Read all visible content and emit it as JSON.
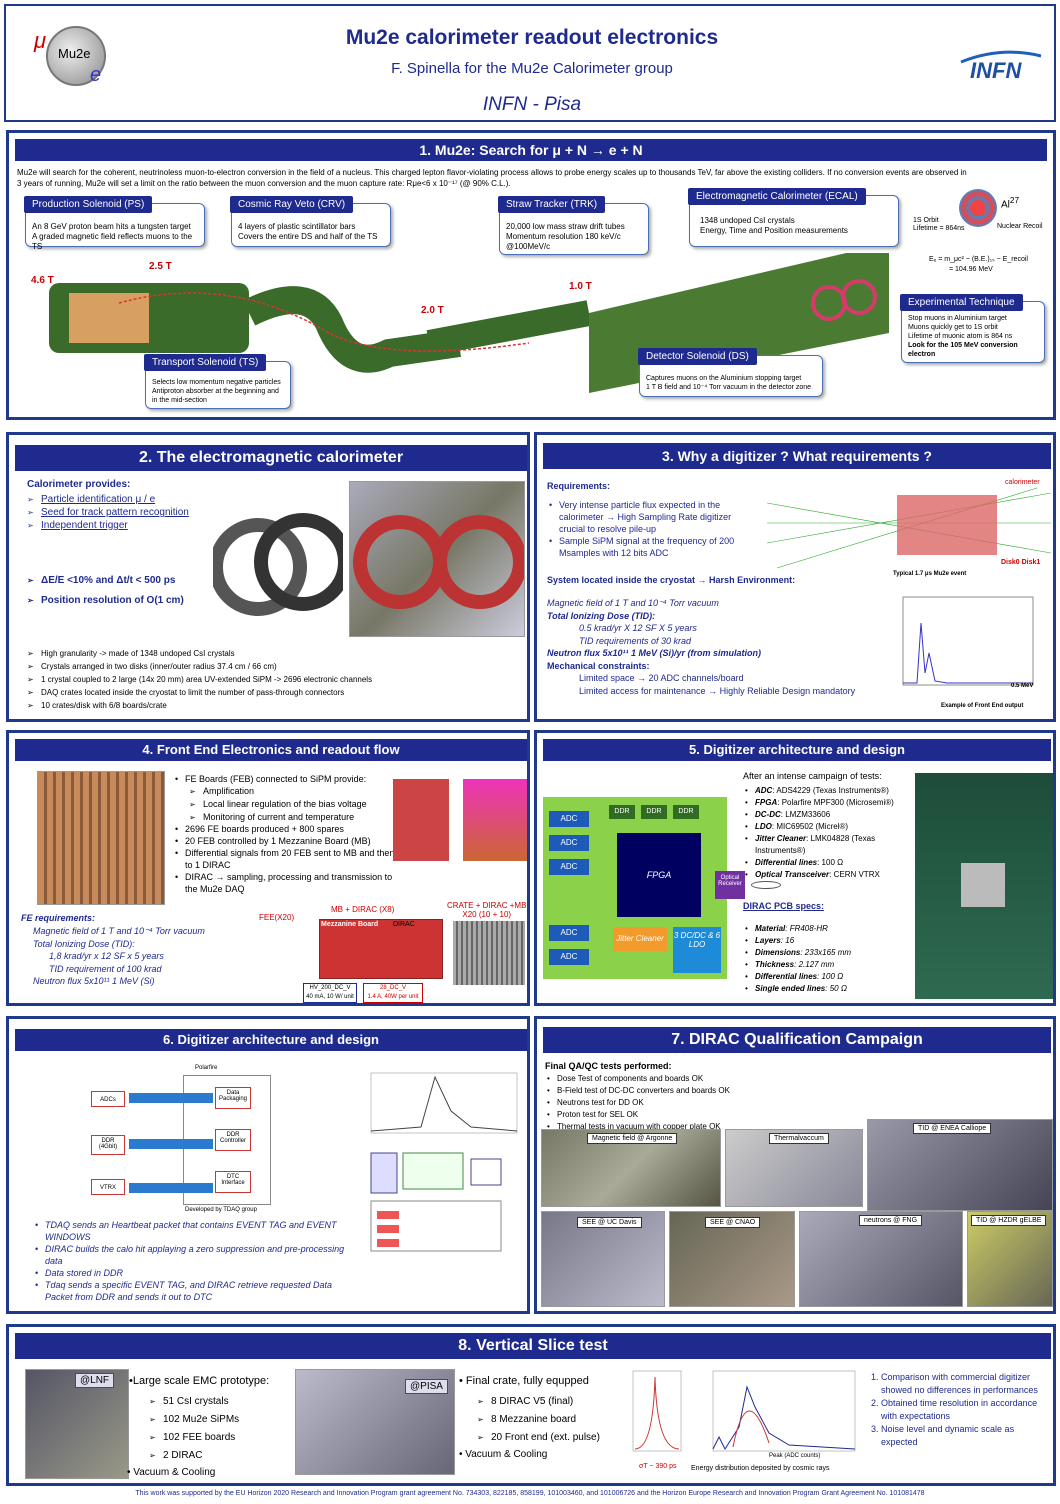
{
  "header": {
    "title": "Mu2e calorimeter readout electronics",
    "author": "F. Spinella for  the Mu2e Calorimeter group",
    "institute": "INFN - Pisa",
    "logo_text": "INFN",
    "mu2e_logo": "Mu2e"
  },
  "p1": {
    "title": "1. Mu2e:  Search for μ + N → e + N",
    "intro1": "Mu2e will search for the coherent, neutrinoless muon-to-electron conversion  in the field of a nucleus. This charged lepton flavor-violating process allows to probe energy scales up to thousands TeV, far above the existing colliders. If no conversion events are observed in",
    "intro2": "3 years of running, Mu2e will set a limit on the ratio between the muon conversion and the muon capture rate: Rμe<6 x 10⁻¹⁷ (@ 90% C.L.).",
    "ps_t": "Production Solenoid  (PS)",
    "ps_1": "An 8 GeV proton beam hits a tungsten target",
    "ps_2": "A graded magnetic field reflects muons to the TS",
    "crv_t": "Cosmic Ray Veto  (CRV)",
    "crv_1": "4 layers of plastic scintillator bars",
    "crv_2": "Covers the entire DS and half of the TS",
    "trk_t": "Straw Tracker (TRK)",
    "trk_1": "20,000 low mass straw drift tubes",
    "trk_2": "Momentum resolution 180 keV/c",
    "trk_3": "@100MeV/c",
    "ecal_t": "Electromagnetic Calorimeter (ECAL)",
    "ecal_1": "1348 undoped CsI crystals",
    "ecal_2": "Energy, Time and Position measurements",
    "al": "Al",
    "al_sup": "27",
    "orbit1": "1S Orbit",
    "orbit2": "Lifetime = 864ns",
    "recoil": "Nuclear Recoil",
    "formula1": "Eₑ = m_μc² − (B.E.)₁ₛ − E_recoil",
    "formula2": "= 104.96 MeV",
    "exp_t": "Experimental Technique",
    "exp_1": "Stop muons in Aluminium target",
    "exp_2": "Muons quickly get to 1S orbit",
    "exp_3": "Lifetime of muonic atom is 864 ns",
    "exp_4": "Look for the 105 MeV conversion",
    "exp_5": "electron",
    "ts_t": "Transport Solenoid (TS)",
    "ts_1": "Selects low momentum negative particles",
    "ts_2": "Antiproton absorber at the beginning and",
    "ts_3": "in the mid-section",
    "ds_t": "Detector Solenoid (DS)",
    "ds_1": "Captures muons on the Aluminium stopping target",
    "ds_2": "1 T B field and 10⁻⁴ Torr vacuum in the  detector zone",
    "f46": "4.6 T",
    "f25": "2.5 T",
    "f20": "2.0 T",
    "f10": "1.0 T"
  },
  "p2": {
    "title": "2. The electromagnetic calorimeter",
    "provides": "Calorimeter provides:",
    "items": [
      "Particle identification μ / e",
      "Seed for track pattern recognition",
      "Independent trigger"
    ],
    "res1": "ΔE/E <10% and Δt/t < 500 ps",
    "res2": "Position resolution of O(1 cm)",
    "bullets": [
      "High granularity -> made of 1348 undoped CsI crystals",
      "Crystals arranged in two disks (inner/outer radius 37.4 cm / 66 cm)",
      "1 crystal coupled to 2 large (14x 20 mm) area UV-extended SiPM -> 2696 electronic channels",
      "DAQ crates located inside the cryostat to limit the number of pass-through connectors",
      "10 crates/disk with 6/8 boards/crate"
    ]
  },
  "p3": {
    "title": "3. Why a digitizer ? What requirements ?",
    "req": "Requirements:",
    "r1": "Very intense particle flux expected in the calorimeter → High Sampling Rate digitizer crucial to resolve pile-up",
    "r2": "Sample SiPM signal at the frequency of 200 Msamples with 12 bits ADC",
    "sys": "System located inside the cryostat → Harsh Environment:",
    "mf": "Magnetic field of 1 T and 10⁻⁴ Torr vacuum",
    "tid": "Total Ionizing Dose (TID):",
    "tid1": "0.5 krad/yr X 12 SF X 5 years",
    "tid2": "TID requirements of 30 krad",
    "nf": "Neutron flux 5x10¹¹ 1 MeV (Si)/yr (from simulation)",
    "mech": "Mechanical constraints:",
    "m1": "Limited space → 20 ADC channels/board",
    "m2": "Limited access for maintenance → Highly Reliable Design mandatory",
    "calo": "calorimeter",
    "disk": "Disk0  Disk1",
    "ev": "Typical 1.7 μs Mu2e event",
    "ex": "Example of Front End output",
    "mev": "0.5 MeV"
  },
  "p4": {
    "title": "4. Front End Electronics and readout flow",
    "items": [
      "FE Boards (FEB) connected to SiPM provide:",
      "Amplification",
      "Local linear regulation of the bias voltage",
      "Monitoring of current and temperature",
      "2696 FE boards produced + 800 spares",
      "20 FEB controlled by 1 Mezzanine Board (MB)",
      "Differential signals from 20 FEB sent to MB and then to 1 DIRAC",
      "DIRAC → sampling,  processing and transmission to the Mu2e DAQ"
    ],
    "fereq": "FE requirements:",
    "fr": [
      "Magnetic field of 1 T and 10⁻⁴ Torr vacuum",
      "Total Ionizing Dose (TID):",
      "1,8 krad/yr  x 12 SF x 5 years",
      "TID requirement of 100 krad",
      "Neutron flux  5x10¹¹ 1 MeV (Si)"
    ],
    "fex": "FEE(X20)",
    "mbx": "MB + DIRAC (X8)",
    "crate": "CRATE + DIRAC +MB",
    "crate2": "X20 (10 + 10)",
    "mezz": "Mezzanine Board",
    "dirac": "DIRAC",
    "hv": "HV_200_DC_V",
    "hv2": "40 mA, 10 W/ unit",
    "v28": "28_DC_V",
    "v28b": "1.4 A, 40W per unit"
  },
  "p5": {
    "title": "5. Digitizer architecture and design",
    "after": "After an intense campaign of tests:",
    "specs": [
      [
        "ADC",
        "ADS4229 (Texas Instruments®)"
      ],
      [
        "FPGA",
        "Polarfire MPF300 (Microsemi®)"
      ],
      [
        "DC-DC",
        "LMZM33606"
      ],
      [
        "LDO",
        "MIC69502 (Micrel®)"
      ],
      [
        "Jitter Cleaner",
        "LMK04828 (Texas Instruments®)"
      ],
      [
        "Differential lines",
        "100 Ω"
      ],
      [
        "Optical Transceiver",
        "CERN VTRX"
      ]
    ],
    "pcb": "DIRAC PCB specs:",
    "pcbs": [
      [
        "Material",
        "FR408-HR"
      ],
      [
        "Layers",
        "16"
      ],
      [
        "Dimensions",
        "233x165 mm"
      ],
      [
        "Thickness",
        "2.127 mm"
      ],
      [
        "Differential lines",
        "100 Ω"
      ],
      [
        "Single ended lines",
        "50 Ω"
      ]
    ],
    "adc": "ADC",
    "ddr": "DDR",
    "fpga": "FPGA",
    "jitter": "Jitter Cleaner",
    "dcdc": "3 DC/DC & 6 LDO",
    "optical": "Optical Receiver"
  },
  "p6": {
    "title": "6. Digitizer architecture and design",
    "bullets": [
      "TDAQ sends an Heartbeat packet that contains EVENT TAG and EVENT WINDOWS",
      "DIRAC builds the calo hit applaying a zero suppression and pre-processing data",
      "Data stored in DDR",
      "Tdaq sends a specific EVENT TAG, and DIRAC retrieve requested Data Packet from DDR and sends it out to DTC"
    ],
    "polar": "Polarfire",
    "adcs": "ADCs",
    "ddr": "DDR (4Gbit)",
    "vtrx": "VTRX",
    "dp": "Data Packaging",
    "ddrc": "DDR Controller",
    "dtc": "DTC Interface",
    "dev": "Developed by TDAQ group"
  },
  "p7": {
    "title": "7. DIRAC Qualification Campaign",
    "final": "Final QA/QC tests  performed:",
    "tests": [
      "Dose Test  of components and  boards OK",
      "B-Field test of DC-DC converters and boards OK",
      "Neutrons test for DD OK",
      "Proton test for SEL OK",
      "Thermal tests in vacuum with copper plate OK"
    ],
    "labels": [
      "Magnetic field @ Argonne",
      "Thermalvaccum",
      "TID @ ENEA Calliope",
      "SEE @ UC Davis",
      "SEE @ CNAO",
      "neutrons @ FNG",
      "TID @ HZDR gELBE"
    ]
  },
  "p8": {
    "title": "8. Vertical Slice test",
    "lnf": "@LNF",
    "pisa": "@PISA",
    "large": "•Large scale EMC prototype:",
    "l": [
      "51 CsI crystals",
      "102 Mu2e SiPMs",
      "102 FEE boards",
      "2 DIRAC"
    ],
    "vac": "• Vacuum & Cooling",
    "final": "• Final crate, fully equpped",
    "f": [
      "8 DIRAC V5 (final)",
      "8 Mezzanine board",
      "20 Front end (ext. pulse)"
    ],
    "vac2": "• Vacuum & Cooling",
    "sigma": "σT ~ 390 ps",
    "edist": "Energy distribution deposited by cosmic rays",
    "peak": "Peak (ADC counts)",
    "conc": [
      "Comparison with commercial digitizer showed no differences in performances",
      "Obtained time resolution in accordance with expectations",
      "Noise level and dynamic scale as expected"
    ]
  },
  "footer": "This work was supported by the EU Horizon 2020 Research and Innovation Program grant agreement No. 734303, 822185, 858199, 101003460, and 101006726 and the Horizon Europe Research and Innovation Program Grant Agreement No. 101081478"
}
